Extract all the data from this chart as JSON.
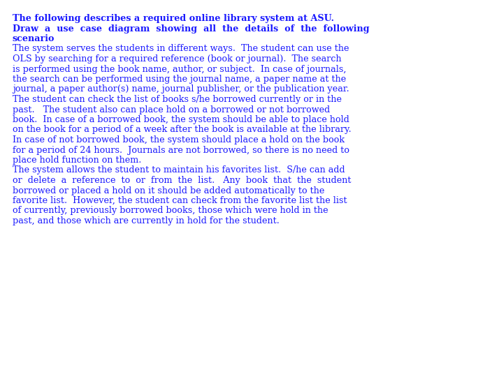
{
  "background_color": "#ffffff",
  "title_line1": "The following describes a required online library system at ASU.",
  "title_line2": "Draw  a  use  case  diagram  showing  all  the  details  of  the  following",
  "title_line3": "scenario",
  "body_paragraphs": [
    "The system serves the students in different ways.  The student can use the\nOLS by searching for a required reference (book or journal).  The search\nis performed using the book name, author, or subject.  In case of journals,\nthe search can be performed using the journal name, a paper name at the\njournal, a paper author(s) name, journal publisher, or the publication year.\nThe student can check the list of books s/he borrowed currently or in the\npast.   The student also can place hold on a borrowed or not borrowed\nbook.  In case of a borrowed book, the system should be able to place hold\non the book for a period of a week after the book is available at the library.\nIn case of not borrowed book, the system should place a hold on the book\nfor a period of 24 hours.  Journals are not borrowed, so there is no need to\nplace hold function on them.",
    "The system allows the student to maintain his favorites list.  S/he can add\nor  delete  a  reference  to  or  from  the  list.   Any  book  that  the  student\nborrowed or placed a hold on it should be added automatically to the\nfavorite list.  However, the student can check from the favorite list the list\nof currently, previously borrowed books, those which were hold in the\npast, and those which are currently in hold for the student."
  ],
  "font_size": 9.2,
  "text_color": "#1a1aff",
  "fig_width": 6.94,
  "fig_height": 5.53,
  "dpi": 100
}
